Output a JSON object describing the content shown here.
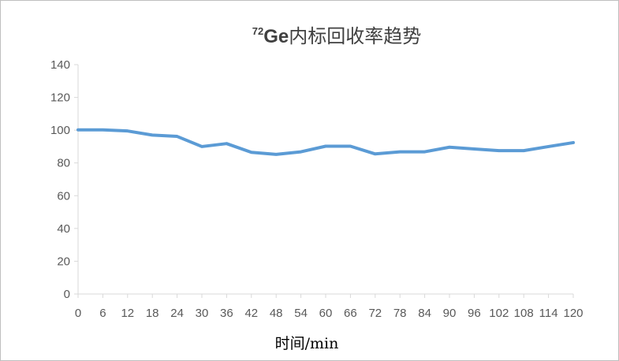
{
  "chart_data": {
    "type": "line",
    "title": {
      "superscript": "72",
      "element": "Ge",
      "rest": "内标回收率趋势"
    },
    "xlabel": "时间/min",
    "ylabel": "",
    "ylim": [
      0,
      140
    ],
    "yticks": [
      0,
      20,
      40,
      60,
      80,
      100,
      120,
      140
    ],
    "x": [
      0,
      6,
      12,
      18,
      24,
      30,
      36,
      42,
      48,
      54,
      60,
      66,
      72,
      78,
      84,
      90,
      96,
      102,
      108,
      114,
      120
    ],
    "series": [
      {
        "values": [
          100.2,
          100.2,
          99.5,
          97,
          96.2,
          90,
          91.8,
          86.5,
          85.2,
          86.8,
          90.2,
          90.2,
          85.5,
          86.8,
          86.8,
          89.6,
          88.5,
          87.5,
          87.5,
          90,
          92.4
        ],
        "color": "#5b9bd5"
      }
    ],
    "grid": false,
    "legend": "none"
  }
}
